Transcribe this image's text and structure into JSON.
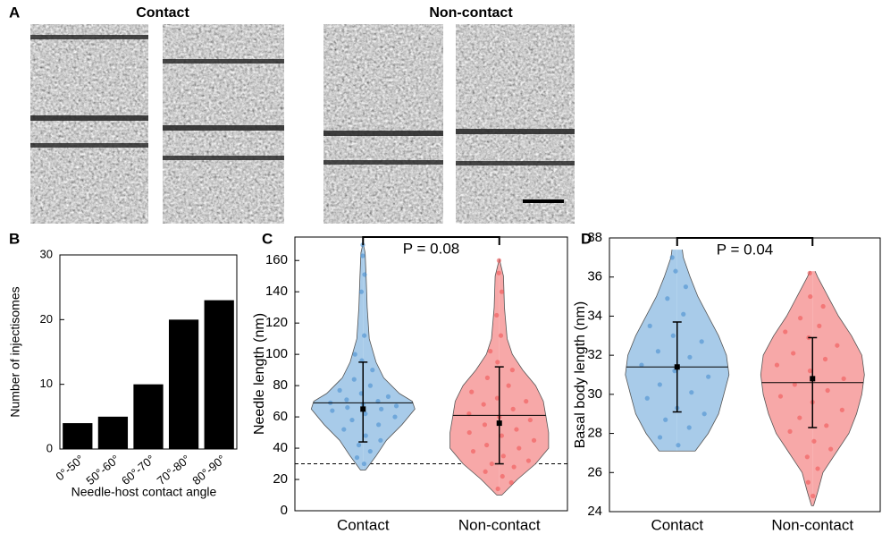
{
  "panel_a": {
    "label": "A",
    "titles": [
      "Contact",
      "Non-contact"
    ]
  },
  "chart_data": [
    {
      "type": "bar",
      "panel": "B",
      "categories": [
        "0°-50°",
        "50°-60°",
        "60°-70°",
        "70°-80°",
        "80°-90°"
      ],
      "values": [
        4,
        5,
        10,
        20,
        23
      ],
      "color": "#000000",
      "ylim": [
        0,
        30
      ],
      "yticks": [
        0,
        10,
        20,
        30
      ],
      "xlabel": "Needle-host contact angle",
      "ylabel": "Number of injectisomes"
    },
    {
      "type": "violin",
      "panel": "C",
      "ylabel": "Needle length (nm)",
      "ylim": [
        0,
        175
      ],
      "yticks": [
        0,
        20,
        40,
        60,
        80,
        100,
        120,
        140,
        160
      ],
      "categories": [
        "Contact",
        "Non-contact"
      ],
      "reference_line": 30,
      "annotation": "P = 0.08",
      "groups": [
        {
          "color": "#a8cbe9",
          "point_color": "#4a90d0",
          "violin": {
            "y": [
              26,
              35,
              45,
              55,
              65,
              70,
              75,
              85,
              95,
              110,
              130,
              150,
              165,
              171
            ],
            "density": [
              0.05,
              0.25,
              0.45,
              0.75,
              1.0,
              0.95,
              0.7,
              0.4,
              0.25,
              0.12,
              0.08,
              0.06,
              0.04,
              0
            ]
          },
          "mean": 65,
          "error_low": 44,
          "error_high": 95,
          "median": 69,
          "points": [
            170,
            163,
            151,
            140,
            112,
            100,
            96,
            90,
            84,
            80,
            77,
            75,
            73,
            71,
            70,
            69,
            68,
            67,
            66,
            65,
            64,
            62,
            60,
            58,
            55,
            52,
            48,
            45,
            42,
            38,
            34,
            30
          ]
        },
        {
          "color": "#f7a8a8",
          "point_color": "#f05656",
          "violin": {
            "y": [
              10,
              20,
              30,
              40,
              50,
              60,
              70,
              80,
              90,
              100,
              110,
              130,
              150,
              161
            ],
            "density": [
              0.05,
              0.35,
              0.7,
              0.95,
              0.95,
              0.9,
              0.85,
              0.7,
              0.45,
              0.25,
              0.15,
              0.1,
              0.08,
              0
            ]
          },
          "mean": 56,
          "error_low": 30,
          "error_high": 92,
          "median": 61,
          "points": [
            160,
            152,
            140,
            125,
            112,
            102,
            95,
            90,
            85,
            80,
            76,
            72,
            70,
            68,
            65,
            62,
            60,
            58,
            55,
            52,
            50,
            48,
            45,
            42,
            40,
            38,
            35,
            32,
            30,
            28,
            25,
            22,
            18,
            14
          ]
        }
      ]
    },
    {
      "type": "violin",
      "panel": "D",
      "ylabel": "Basal body length (nm)",
      "ylim": [
        24,
        38
      ],
      "yticks": [
        24,
        26,
        28,
        30,
        32,
        34,
        36,
        38
      ],
      "categories": [
        "Contact",
        "Non-contact"
      ],
      "annotation": "P = 0.04",
      "groups": [
        {
          "color": "#a8cbe9",
          "point_color": "#4a90d0",
          "violin": {
            "y": [
              27.1,
              28,
              29,
              30,
              31,
              32,
              33,
              34,
              35,
              36,
              37,
              37.4
            ],
            "density": [
              0.35,
              0.6,
              0.8,
              0.9,
              1.0,
              0.95,
              0.8,
              0.6,
              0.4,
              0.25,
              0.12,
              0.1
            ]
          },
          "mean": 31.4,
          "error_low": 29.1,
          "error_high": 33.7,
          "median": 31.4,
          "points": [
            37.0,
            36.3,
            35.5,
            34.9,
            34.1,
            33.5,
            33.0,
            32.7,
            32.2,
            31.9,
            31.5,
            31.2,
            30.9,
            30.5,
            30.1,
            29.8,
            29.3,
            29.0,
            28.7,
            28.3,
            27.8,
            27.4
          ]
        },
        {
          "color": "#f7a8a8",
          "point_color": "#f05656",
          "violin": {
            "y": [
              24.3,
              25,
              26,
              27,
              28,
              29,
              30,
              31,
              32,
              33,
              34,
              35,
              36,
              36.3
            ],
            "density": [
              0.02,
              0.1,
              0.2,
              0.45,
              0.7,
              0.85,
              0.95,
              1.0,
              0.95,
              0.75,
              0.5,
              0.3,
              0.1,
              0.05
            ]
          },
          "mean": 30.8,
          "error_low": 28.3,
          "error_high": 32.9,
          "median": 30.6,
          "points": [
            36.2,
            35.0,
            34.5,
            33.9,
            33.5,
            33.2,
            32.9,
            32.5,
            32.1,
            31.8,
            31.5,
            31.2,
            30.8,
            30.5,
            30.2,
            29.9,
            29.6,
            29.2,
            28.8,
            28.4,
            28.1,
            27.6,
            27.2,
            26.8,
            26.2,
            25.5,
            24.8
          ]
        }
      ]
    }
  ]
}
